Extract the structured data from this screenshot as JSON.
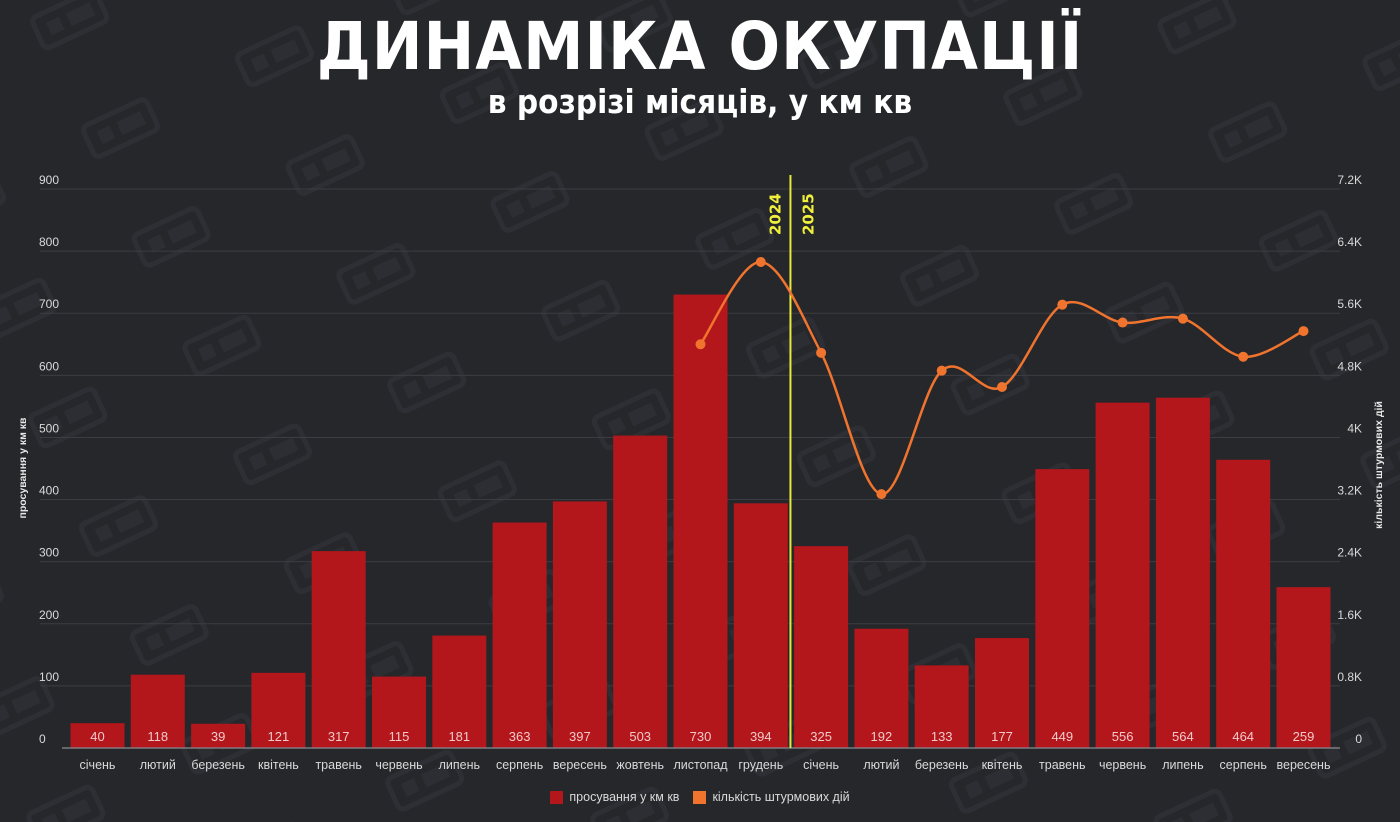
{
  "header": {
    "title": "ДИНАМІКА ОКУПАЦІЇ",
    "subtitle": "в розрізі місяців, у км кв"
  },
  "colors": {
    "background": "#26272b",
    "bar": "#b3161b",
    "line": "#f0742e",
    "divider": "#e8e83a",
    "grid": "#3c3d42"
  },
  "divider": {
    "left_label": "2024",
    "right_label": "2025"
  },
  "legend": {
    "bar_label": "просування у км кв",
    "line_label": "кількість штурмових дій"
  },
  "chart_data": {
    "type": "bar+line",
    "title": "ДИНАМІКА ОКУПАЦІЇ",
    "subtitle": "в розрізі місяців, у км кв",
    "xlabel": "",
    "ylabel": "просування у км кв",
    "ylabel_right": "кількість штурмових дій",
    "ylim": [
      0,
      900
    ],
    "ylim_right": [
      0,
      7200
    ],
    "yticks": [
      "0",
      "100",
      "200",
      "300",
      "400",
      "500",
      "600",
      "700",
      "800",
      "900"
    ],
    "yticks_right": [
      "0",
      "0.8K",
      "1.6K",
      "2.4K",
      "3.2K",
      "4K",
      "4.8K",
      "5.6K",
      "6.4K",
      "7.2K"
    ],
    "grid": true,
    "legend_position": "bottom",
    "year_divider": {
      "after_index": 11,
      "labels": [
        "2024",
        "2025"
      ]
    },
    "categories": [
      "січень",
      "лютий",
      "березень",
      "квітень",
      "травень",
      "червень",
      "липень",
      "серпень",
      "вересень",
      "жовтень",
      "листопад",
      "грудень",
      "січень",
      "лютий",
      "березень",
      "квітень",
      "травень",
      "червень",
      "липень",
      "серпень",
      "вересень"
    ],
    "series": [
      {
        "name": "просування у км кв",
        "type": "bar",
        "axis": "left",
        "values": [
          40,
          118,
          39,
          121,
          317,
          115,
          181,
          363,
          397,
          503,
          730,
          394,
          325,
          192,
          133,
          177,
          449,
          556,
          564,
          464,
          259
        ]
      },
      {
        "name": "кількість штурмових дій",
        "type": "line",
        "axis": "right",
        "values": [
          null,
          null,
          null,
          null,
          null,
          null,
          null,
          null,
          null,
          null,
          5200,
          6260,
          5090,
          3270,
          4860,
          4650,
          5710,
          5480,
          5530,
          5040,
          5370
        ]
      }
    ]
  }
}
